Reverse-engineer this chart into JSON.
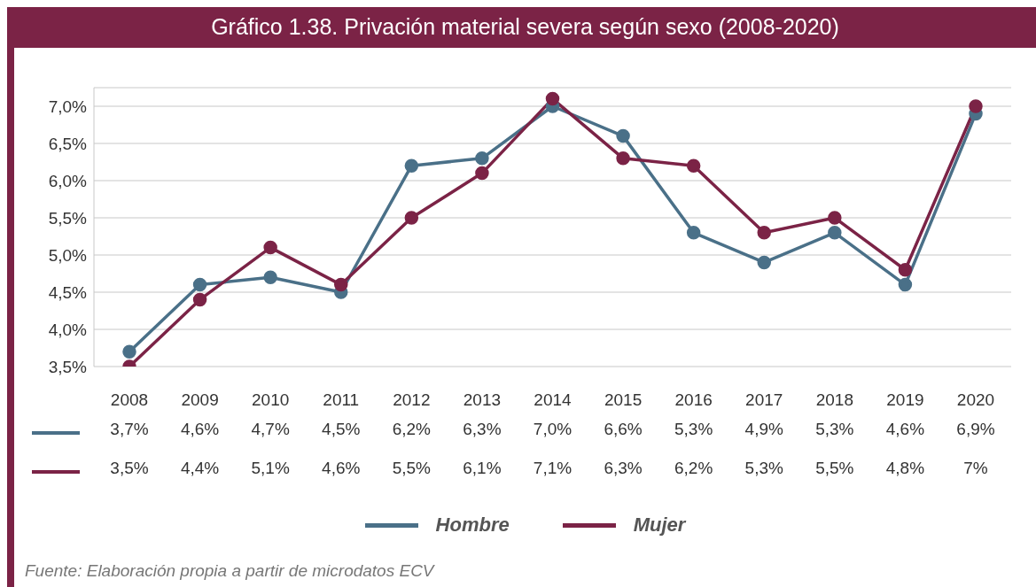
{
  "chart_data": {
    "type": "line",
    "title": "Gráfico 1.38. Privación material severa según sexo (2008-2020)",
    "categories": [
      "2008",
      "2009",
      "2010",
      "2011",
      "2012",
      "2013",
      "2014",
      "2015",
      "2016",
      "2017",
      "2018",
      "2019",
      "2020"
    ],
    "series": [
      {
        "name": "Hombre",
        "color": "#4a7088",
        "values": [
          3.7,
          4.6,
          4.7,
          4.5,
          6.2,
          6.3,
          7.0,
          6.6,
          5.3,
          4.9,
          5.3,
          4.6,
          6.9
        ],
        "value_labels": [
          "3,7%",
          "4,6%",
          "4,7%",
          "4,5%",
          "6,2%",
          "6,3%",
          "7,0%",
          "6,6%",
          "5,3%",
          "4,9%",
          "5,3%",
          "4,6%",
          "6,9%"
        ]
      },
      {
        "name": "Mujer",
        "color": "#7b2346",
        "values": [
          3.5,
          4.4,
          5.1,
          4.6,
          5.5,
          6.1,
          7.1,
          6.3,
          6.2,
          5.3,
          5.5,
          4.8,
          7
        ],
        "value_labels": [
          "3,5%",
          "4,4%",
          "5,1%",
          "4,6%",
          "5,5%",
          "6,1%",
          "7,1%",
          "6,3%",
          "6,2%",
          "5,3%",
          "5,5%",
          "4,8%",
          "7%"
        ]
      }
    ],
    "ylim": [
      3.5,
      7.25
    ],
    "yticks": [
      {
        "value": 3.5,
        "label": "3,5%"
      },
      {
        "value": 4,
        "label": "4,0%"
      },
      {
        "value": 4.5,
        "label": "4,5%"
      },
      {
        "value": 5,
        "label": "5,0%"
      },
      {
        "value": 5.5,
        "label": "5,5%"
      },
      {
        "value": 6,
        "label": "6,0%"
      },
      {
        "value": 6.5,
        "label": "6,5%"
      },
      {
        "value": 7,
        "label": "7,0%"
      }
    ],
    "grid": "y",
    "legend": "bottom",
    "marker": "circle",
    "line_style": "solid",
    "annotations": [
      "Fuente: Elaboración propia a partir de microdatos ECV"
    ]
  }
}
